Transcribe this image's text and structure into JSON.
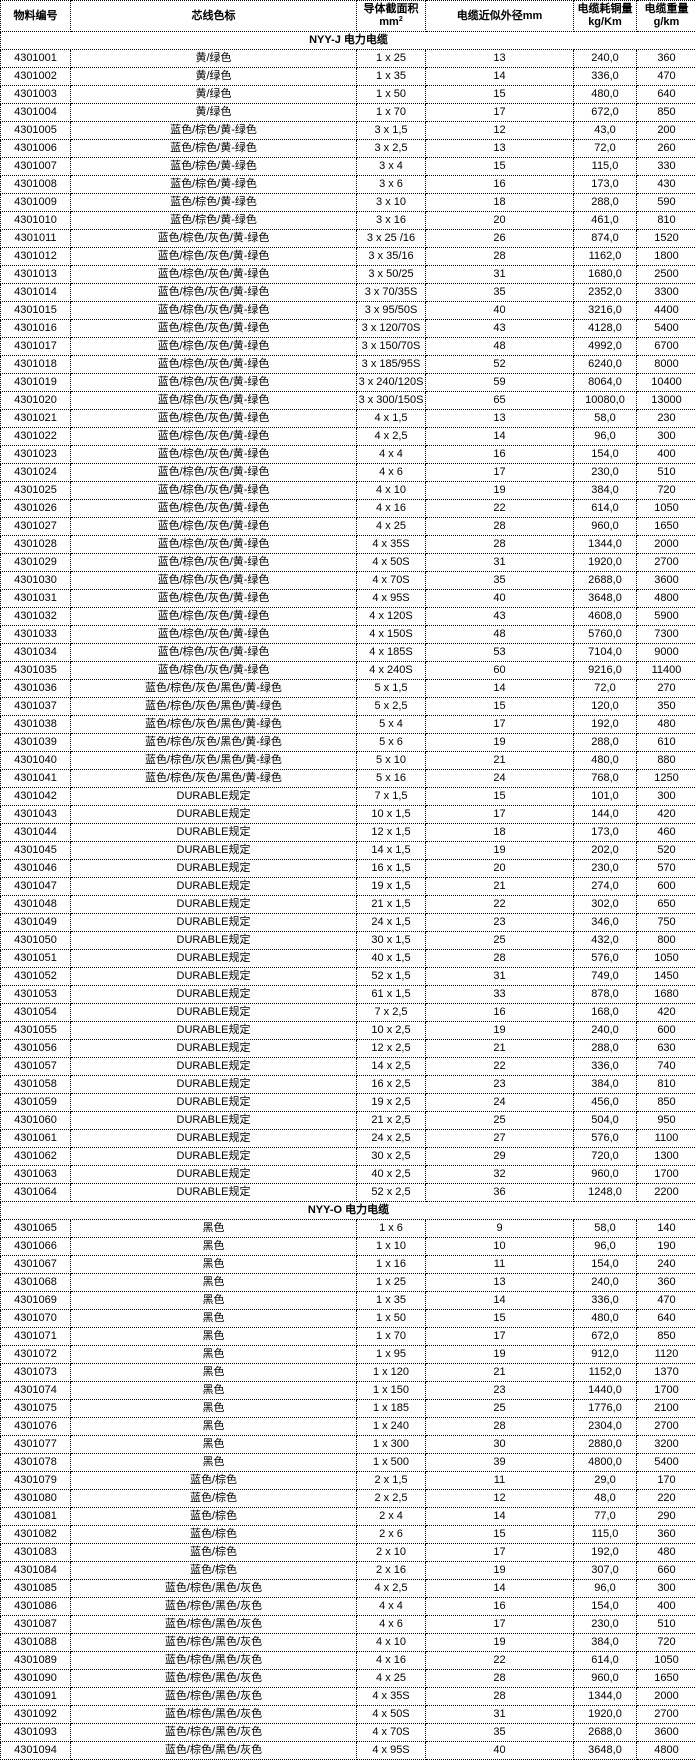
{
  "header": {
    "id": "物料编号",
    "color": "芯线色标",
    "area": "导体截面积",
    "area_unit": "mm",
    "area_sup": "2",
    "diameter": "电缆近似外径mm",
    "copper": "电缆耗铜量",
    "copper_unit": "kg/Km",
    "weight": "电缆重量",
    "weight_unit": "g/km"
  },
  "sections": [
    {
      "title": "NYY-J 电力电缆",
      "rows": [
        [
          "4301001",
          "黄/绿色",
          "1 x 25",
          "13",
          "240,0",
          "360"
        ],
        [
          "4301002",
          "黄/绿色",
          "1 x 35",
          "14",
          "336,0",
          "470"
        ],
        [
          "4301003",
          "黄/绿色",
          "1 x 50",
          "15",
          "480,0",
          "640"
        ],
        [
          "4301004",
          "黄/绿色",
          "1 x 70",
          "17",
          "672,0",
          "850"
        ],
        [
          "4301005",
          "蓝色/棕色/黄-绿色",
          "3 x 1,5",
          "12",
          "43,0",
          "200"
        ],
        [
          "4301006",
          "蓝色/棕色/黄-绿色",
          "3 x 2,5",
          "13",
          "72,0",
          "260"
        ],
        [
          "4301007",
          "蓝色/棕色/黄-绿色",
          "3 x 4",
          "15",
          "115,0",
          "330"
        ],
        [
          "4301008",
          "蓝色/棕色/黄-绿色",
          "3 x 6",
          "16",
          "173,0",
          "430"
        ],
        [
          "4301009",
          "蓝色/棕色/黄-绿色",
          "3 x 10",
          "18",
          "288,0",
          "590"
        ],
        [
          "4301010",
          "蓝色/棕色/黄-绿色",
          "3 x 16",
          "20",
          "461,0",
          "810"
        ],
        [
          "4301011",
          "蓝色/棕色/灰色/黄-绿色",
          "3 x 25 /16",
          "26",
          "874,0",
          "1520"
        ],
        [
          "4301012",
          "蓝色/棕色/灰色/黄-绿色",
          "3 x 35/16",
          "28",
          "1162,0",
          "1800"
        ],
        [
          "4301013",
          "蓝色/棕色/灰色/黄-绿色",
          "3 x 50/25",
          "31",
          "1680,0",
          "2500"
        ],
        [
          "4301014",
          "蓝色/棕色/灰色/黄-绿色",
          "3 x 70/35S",
          "35",
          "2352,0",
          "3300"
        ],
        [
          "4301015",
          "蓝色/棕色/灰色/黄-绿色",
          "3 x 95/50S",
          "40",
          "3216,0",
          "4400"
        ],
        [
          "4301016",
          "蓝色/棕色/灰色/黄-绿色",
          "3 x 120/70S",
          "43",
          "4128,0",
          "5400"
        ],
        [
          "4301017",
          "蓝色/棕色/灰色/黄-绿色",
          "3 x 150/70S",
          "48",
          "4992,0",
          "6700"
        ],
        [
          "4301018",
          "蓝色/棕色/灰色/黄-绿色",
          "3 x 185/95S",
          "52",
          "6240,0",
          "8000"
        ],
        [
          "4301019",
          "蓝色/棕色/灰色/黄-绿色",
          "3 x 240/120S",
          "59",
          "8064,0",
          "10400"
        ],
        [
          "4301020",
          "蓝色/棕色/灰色/黄-绿色",
          "3 x 300/150S",
          "65",
          "10080,0",
          "13000"
        ],
        [
          "4301021",
          "蓝色/棕色/灰色/黄-绿色",
          "4 x 1,5",
          "13",
          "58,0",
          "230"
        ],
        [
          "4301022",
          "蓝色/棕色/灰色/黄-绿色",
          "4 x 2,5",
          "14",
          "96,0",
          "300"
        ],
        [
          "4301023",
          "蓝色/棕色/灰色/黄-绿色",
          "4 x 4",
          "16",
          "154,0",
          "400"
        ],
        [
          "4301024",
          "蓝色/棕色/灰色/黄-绿色",
          "4 x 6",
          "17",
          "230,0",
          "510"
        ],
        [
          "4301025",
          "蓝色/棕色/灰色/黄-绿色",
          "4 x 10",
          "19",
          "384,0",
          "720"
        ],
        [
          "4301026",
          "蓝色/棕色/灰色/黄-绿色",
          "4 x 16",
          "22",
          "614,0",
          "1050"
        ],
        [
          "4301027",
          "蓝色/棕色/灰色/黄-绿色",
          "4 x 25",
          "28",
          "960,0",
          "1650"
        ],
        [
          "4301028",
          "蓝色/棕色/灰色/黄-绿色",
          "4 x 35S",
          "28",
          "1344,0",
          "2000"
        ],
        [
          "4301029",
          "蓝色/棕色/灰色/黄-绿色",
          "4 x 50S",
          "31",
          "1920,0",
          "2700"
        ],
        [
          "4301030",
          "蓝色/棕色/灰色/黄-绿色",
          "4 x 70S",
          "35",
          "2688,0",
          "3600"
        ],
        [
          "4301031",
          "蓝色/棕色/灰色/黄-绿色",
          "4 x 95S",
          "40",
          "3648,0",
          "4800"
        ],
        [
          "4301032",
          "蓝色/棕色/灰色/黄-绿色",
          "4 x 120S",
          "43",
          "4608,0",
          "5900"
        ],
        [
          "4301033",
          "蓝色/棕色/灰色/黄-绿色",
          "4 x 150S",
          "48",
          "5760,0",
          "7300"
        ],
        [
          "4301034",
          "蓝色/棕色/灰色/黄-绿色",
          "4 x 185S",
          "53",
          "7104,0",
          "9000"
        ],
        [
          "4301035",
          "蓝色/棕色/灰色/黄-绿色",
          "4 x 240S",
          "60",
          "9216,0",
          "11400"
        ],
        [
          "4301036",
          "蓝色/棕色/灰色/黑色/黄-绿色",
          "5 x 1,5",
          "14",
          "72,0",
          "270"
        ],
        [
          "4301037",
          "蓝色/棕色/灰色/黑色/黄-绿色",
          "5 x 2,5",
          "15",
          "120,0",
          "350"
        ],
        [
          "4301038",
          "蓝色/棕色/灰色/黑色/黄-绿色",
          "5 x 4",
          "17",
          "192,0",
          "480"
        ],
        [
          "4301039",
          "蓝色/棕色/灰色/黑色/黄-绿色",
          "5 x 6",
          "19",
          "288,0",
          "610"
        ],
        [
          "4301040",
          "蓝色/棕色/灰色/黑色/黄-绿色",
          "5 x 10",
          "21",
          "480,0",
          "880"
        ],
        [
          "4301041",
          "蓝色/棕色/灰色/黑色/黄-绿色",
          "5 x 16",
          "24",
          "768,0",
          "1250"
        ],
        [
          "4301042",
          "DURABLE规定",
          "7 x 1,5",
          "15",
          "101,0",
          "300"
        ],
        [
          "4301043",
          "DURABLE规定",
          "10 x 1,5",
          "17",
          "144,0",
          "420"
        ],
        [
          "4301044",
          "DURABLE规定",
          "12 x 1,5",
          "18",
          "173,0",
          "460"
        ],
        [
          "4301045",
          "DURABLE规定",
          "14 x 1,5",
          "19",
          "202,0",
          "520"
        ],
        [
          "4301046",
          "DURABLE规定",
          "16 x 1,5",
          "20",
          "230,0",
          "570"
        ],
        [
          "4301047",
          "DURABLE规定",
          "19 x 1,5",
          "21",
          "274,0",
          "600"
        ],
        [
          "4301048",
          "DURABLE规定",
          "21 x 1,5",
          "22",
          "302,0",
          "650"
        ],
        [
          "4301049",
          "DURABLE规定",
          "24 x 1,5",
          "23",
          "346,0",
          "750"
        ],
        [
          "4301050",
          "DURABLE规定",
          "30 x 1,5",
          "25",
          "432,0",
          "800"
        ],
        [
          "4301051",
          "DURABLE规定",
          "40 x 1,5",
          "28",
          "576,0",
          "1050"
        ],
        [
          "4301052",
          "DURABLE规定",
          "52 x 1,5",
          "31",
          "749,0",
          "1450"
        ],
        [
          "4301053",
          "DURABLE规定",
          "61 x 1,5",
          "33",
          "878,0",
          "1680"
        ],
        [
          "4301054",
          "DURABLE规定",
          "7 x 2,5",
          "16",
          "168,0",
          "420"
        ],
        [
          "4301055",
          "DURABLE规定",
          "10 x 2,5",
          "19",
          "240,0",
          "600"
        ],
        [
          "4301056",
          "DURABLE规定",
          "12 x 2,5",
          "21",
          "288,0",
          "630"
        ],
        [
          "4301057",
          "DURABLE规定",
          "14 x 2,5",
          "22",
          "336,0",
          "740"
        ],
        [
          "4301058",
          "DURABLE规定",
          "16 x 2,5",
          "23",
          "384,0",
          "810"
        ],
        [
          "4301059",
          "DURABLE规定",
          "19 x 2,5",
          "24",
          "456,0",
          "850"
        ],
        [
          "4301060",
          "DURABLE规定",
          "21 x 2,5",
          "25",
          "504,0",
          "950"
        ],
        [
          "4301061",
          "DURABLE规定",
          "24 x 2,5",
          "27",
          "576,0",
          "1100"
        ],
        [
          "4301062",
          "DURABLE规定",
          "30 x 2,5",
          "29",
          "720,0",
          "1300"
        ],
        [
          "4301063",
          "DURABLE规定",
          "40 x 2,5",
          "32",
          "960,0",
          "1700"
        ],
        [
          "4301064",
          "DURABLE规定",
          "52 x 2,5",
          "36",
          "1248,0",
          "2200"
        ]
      ]
    },
    {
      "title": "NYY-O  电力电缆",
      "rows": [
        [
          "4301065",
          "黑色",
          "1 x 6",
          "9",
          "58,0",
          "140"
        ],
        [
          "4301066",
          "黑色",
          "1 x 10",
          "10",
          "96,0",
          "190"
        ],
        [
          "4301067",
          "黑色",
          "1 x 16",
          "11",
          "154,0",
          "240"
        ],
        [
          "4301068",
          "黑色",
          "1 x 25",
          "13",
          "240,0",
          "360"
        ],
        [
          "4301069",
          "黑色",
          "1 x 35",
          "14",
          "336,0",
          "470"
        ],
        [
          "4301070",
          "黑色",
          "1 x 50",
          "15",
          "480,0",
          "640"
        ],
        [
          "4301071",
          "黑色",
          "1 x 70",
          "17",
          "672,0",
          "850"
        ],
        [
          "4301072",
          "黑色",
          "1 x 95",
          "19",
          "912,0",
          "1120"
        ],
        [
          "4301073",
          "黑色",
          "1 x 120",
          "21",
          "1152,0",
          "1370"
        ],
        [
          "4301074",
          "黑色",
          "1 x 150",
          "23",
          "1440,0",
          "1700"
        ],
        [
          "4301075",
          "黑色",
          "1 x 185",
          "25",
          "1776,0",
          "2100"
        ],
        [
          "4301076",
          "黑色",
          "1 x 240",
          "28",
          "2304,0",
          "2700"
        ],
        [
          "4301077",
          "黑色",
          "1 x 300",
          "30",
          "2880,0",
          "3200"
        ],
        [
          "4301078",
          "黑色",
          "1 x 500",
          "39",
          "4800,0",
          "5400"
        ],
        [
          "4301079",
          "蓝色/棕色",
          "2 x 1,5",
          "11",
          "29,0",
          "170"
        ],
        [
          "4301080",
          "蓝色/棕色",
          "2 x 2,5",
          "12",
          "48,0",
          "220"
        ],
        [
          "4301081",
          "蓝色/棕色",
          "2 x 4",
          "14",
          "77,0",
          "290"
        ],
        [
          "4301082",
          "蓝色/棕色",
          "2 x 6",
          "15",
          "115,0",
          "360"
        ],
        [
          "4301083",
          "蓝色/棕色",
          "2 x 10",
          "17",
          "192,0",
          "480"
        ],
        [
          "4301084",
          "蓝色/棕色",
          "2 x 16",
          "19",
          "307,0",
          "660"
        ],
        [
          "4301085",
          "蓝色/棕色/黑色/灰色",
          "4 x 2,5",
          "14",
          "96,0",
          "300"
        ],
        [
          "4301086",
          "蓝色/棕色/黑色/灰色",
          "4 x 4",
          "16",
          "154,0",
          "400"
        ],
        [
          "4301087",
          "蓝色/棕色/黑色/灰色",
          "4 x 6",
          "17",
          "230,0",
          "510"
        ],
        [
          "4301088",
          "蓝色/棕色/黑色/灰色",
          "4 x 10",
          "19",
          "384,0",
          "720"
        ],
        [
          "4301089",
          "蓝色/棕色/黑色/灰色",
          "4 x 16",
          "22",
          "614,0",
          "1050"
        ],
        [
          "4301090",
          "蓝色/棕色/黑色/灰色",
          "4 x 25",
          "28",
          "960,0",
          "1650"
        ],
        [
          "4301091",
          "蓝色/棕色/黑色/灰色",
          "4 x 35S",
          "28",
          "1344,0",
          "2000"
        ],
        [
          "4301092",
          "蓝色/棕色/黑色/灰色",
          "4 x 50S",
          "31",
          "1920,0",
          "2700"
        ],
        [
          "4301093",
          "蓝色/棕色/黑色/灰色",
          "4 x 70S",
          "35",
          "2688,0",
          "3600"
        ],
        [
          "4301094",
          "蓝色/棕色/黑色/灰色",
          "4 x 95S",
          "40",
          "3648,0",
          "4800"
        ]
      ]
    }
  ]
}
